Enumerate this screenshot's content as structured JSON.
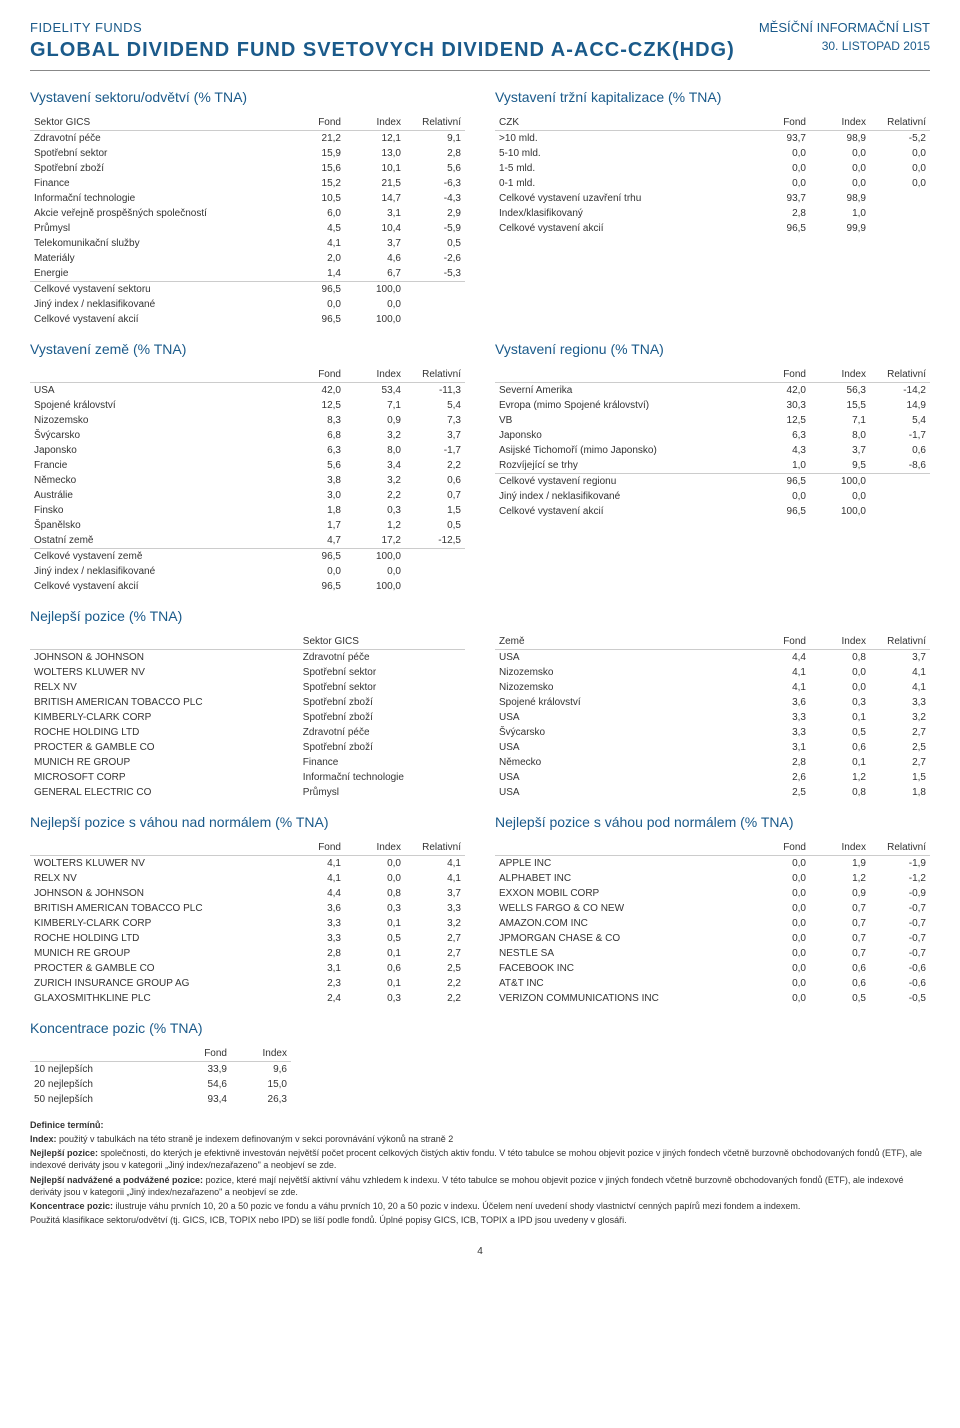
{
  "header": {
    "brand": "FIDELITY FUNDS",
    "title": "GLOBAL DIVIDEND FUND SVETOVYCH DIVIDEND A-ACC-CZK(HDG)",
    "doc_type": "MĚSÍČNÍ INFORMAČNÍ LIST",
    "doc_date": "30. LISTOPAD 2015"
  },
  "sector": {
    "title": "Vystavení sektoru/odvětví (% TNA)",
    "col_label": "Sektor GICS",
    "cols": [
      "Fond",
      "Index",
      "Relativní"
    ],
    "rows": [
      {
        "n": "Zdravotní péče",
        "f": "21,2",
        "i": "12,1",
        "r": "9,1"
      },
      {
        "n": "Spotřební sektor",
        "f": "15,9",
        "i": "13,0",
        "r": "2,8"
      },
      {
        "n": "Spotřební zboží",
        "f": "15,6",
        "i": "10,1",
        "r": "5,6"
      },
      {
        "n": "Finance",
        "f": "15,2",
        "i": "21,5",
        "r": "-6,3"
      },
      {
        "n": "Informační technologie",
        "f": "10,5",
        "i": "14,7",
        "r": "-4,3"
      },
      {
        "n": "Akcie veřejně prospěšných společností",
        "f": "6,0",
        "i": "3,1",
        "r": "2,9"
      },
      {
        "n": "Průmysl",
        "f": "4,5",
        "i": "10,4",
        "r": "-5,9"
      },
      {
        "n": "Telekomunikační služby",
        "f": "4,1",
        "i": "3,7",
        "r": "0,5"
      },
      {
        "n": "Materiály",
        "f": "2,0",
        "i": "4,6",
        "r": "-2,6"
      },
      {
        "n": "Energie",
        "f": "1,4",
        "i": "6,7",
        "r": "-5,3"
      }
    ],
    "totals": [
      {
        "n": "Celkové vystavení sektoru",
        "f": "96,5",
        "i": "100,0",
        "r": ""
      },
      {
        "n": "Jiný index / neklasifikované",
        "f": "0,0",
        "i": "0,0",
        "r": ""
      },
      {
        "n": "Celkové vystavení akcií",
        "f": "96,5",
        "i": "100,0",
        "r": ""
      }
    ]
  },
  "mcap": {
    "title": "Vystavení tržní kapitalizace (% TNA)",
    "col_label": "CZK",
    "cols": [
      "Fond",
      "Index",
      "Relativní"
    ],
    "rows": [
      {
        "n": ">10 mld.",
        "f": "93,7",
        "i": "98,9",
        "r": "-5,2"
      },
      {
        "n": "5-10 mld.",
        "f": "0,0",
        "i": "0,0",
        "r": "0,0"
      },
      {
        "n": "1-5 mld.",
        "f": "0,0",
        "i": "0,0",
        "r": "0,0"
      },
      {
        "n": "0-1 mld.",
        "f": "0,0",
        "i": "0,0",
        "r": "0,0"
      },
      {
        "n": "Celkové vystavení uzavření trhu",
        "f": "93,7",
        "i": "98,9",
        "r": ""
      },
      {
        "n": "Index/klasifikovaný",
        "f": "2,8",
        "i": "1,0",
        "r": ""
      },
      {
        "n": "Celkové vystavení akcií",
        "f": "96,5",
        "i": "99,9",
        "r": ""
      }
    ]
  },
  "country": {
    "title": "Vystavení země (% TNA)",
    "cols": [
      "Fond",
      "Index",
      "Relativní"
    ],
    "rows": [
      {
        "n": "USA",
        "f": "42,0",
        "i": "53,4",
        "r": "-11,3"
      },
      {
        "n": "Spojené království",
        "f": "12,5",
        "i": "7,1",
        "r": "5,4"
      },
      {
        "n": "Nizozemsko",
        "f": "8,3",
        "i": "0,9",
        "r": "7,3"
      },
      {
        "n": "Švýcarsko",
        "f": "6,8",
        "i": "3,2",
        "r": "3,7"
      },
      {
        "n": "Japonsko",
        "f": "6,3",
        "i": "8,0",
        "r": "-1,7"
      },
      {
        "n": "Francie",
        "f": "5,6",
        "i": "3,4",
        "r": "2,2"
      },
      {
        "n": "Německo",
        "f": "3,8",
        "i": "3,2",
        "r": "0,6"
      },
      {
        "n": "Austrálie",
        "f": "3,0",
        "i": "2,2",
        "r": "0,7"
      },
      {
        "n": "Finsko",
        "f": "1,8",
        "i": "0,3",
        "r": "1,5"
      },
      {
        "n": "Španělsko",
        "f": "1,7",
        "i": "1,2",
        "r": "0,5"
      },
      {
        "n": "Ostatní země",
        "f": "4,7",
        "i": "17,2",
        "r": "-12,5"
      }
    ],
    "totals": [
      {
        "n": "Celkové vystavení země",
        "f": "96,5",
        "i": "100,0",
        "r": ""
      },
      {
        "n": "Jiný index / neklasifikované",
        "f": "0,0",
        "i": "0,0",
        "r": ""
      },
      {
        "n": "Celkové vystavení akcií",
        "f": "96,5",
        "i": "100,0",
        "r": ""
      }
    ]
  },
  "region": {
    "title": "Vystavení regionu (% TNA)",
    "cols": [
      "Fond",
      "Index",
      "Relativní"
    ],
    "rows": [
      {
        "n": "Severní Amerika",
        "f": "42,0",
        "i": "56,3",
        "r": "-14,2"
      },
      {
        "n": "Evropa (mimo Spojené království)",
        "f": "30,3",
        "i": "15,5",
        "r": "14,9"
      },
      {
        "n": "VB",
        "f": "12,5",
        "i": "7,1",
        "r": "5,4"
      },
      {
        "n": "Japonsko",
        "f": "6,3",
        "i": "8,0",
        "r": "-1,7"
      },
      {
        "n": "Asijské Tichomoří (mimo Japonsko)",
        "f": "4,3",
        "i": "3,7",
        "r": "0,6"
      },
      {
        "n": "Rozvíjející se trhy",
        "f": "1,0",
        "i": "9,5",
        "r": "-8,6"
      }
    ],
    "totals": [
      {
        "n": "Celkové vystavení regionu",
        "f": "96,5",
        "i": "100,0",
        "r": ""
      },
      {
        "n": "Jiný index / neklasifikované",
        "f": "0,0",
        "i": "0,0",
        "r": ""
      },
      {
        "n": "Celkové vystavení akcií",
        "f": "96,5",
        "i": "100,0",
        "r": ""
      }
    ]
  },
  "top_positions": {
    "title": "Nejlepší pozice (% TNA)",
    "left_cols": [
      "",
      "Sektor GICS"
    ],
    "right_cols": [
      "Země",
      "Fond",
      "Index",
      "Relativní"
    ],
    "rows": [
      {
        "n": "JOHNSON & JOHNSON",
        "s": "Zdravotní péče",
        "c": "USA",
        "f": "4,4",
        "i": "0,8",
        "r": "3,7"
      },
      {
        "n": "WOLTERS KLUWER NV",
        "s": "Spotřební sektor",
        "c": "Nizozemsko",
        "f": "4,1",
        "i": "0,0",
        "r": "4,1"
      },
      {
        "n": "RELX NV",
        "s": "Spotřební sektor",
        "c": "Nizozemsko",
        "f": "4,1",
        "i": "0,0",
        "r": "4,1"
      },
      {
        "n": "BRITISH AMERICAN TOBACCO PLC",
        "s": "Spotřební zboží",
        "c": "Spojené království",
        "f": "3,6",
        "i": "0,3",
        "r": "3,3"
      },
      {
        "n": "KIMBERLY-CLARK CORP",
        "s": "Spotřební zboží",
        "c": "USA",
        "f": "3,3",
        "i": "0,1",
        "r": "3,2"
      },
      {
        "n": "ROCHE HOLDING LTD",
        "s": "Zdravotní péče",
        "c": "Švýcarsko",
        "f": "3,3",
        "i": "0,5",
        "r": "2,7"
      },
      {
        "n": "PROCTER & GAMBLE CO",
        "s": "Spotřební zboží",
        "c": "USA",
        "f": "3,1",
        "i": "0,6",
        "r": "2,5"
      },
      {
        "n": "MUNICH RE GROUP",
        "s": "Finance",
        "c": "Německo",
        "f": "2,8",
        "i": "0,1",
        "r": "2,7"
      },
      {
        "n": "MICROSOFT CORP",
        "s": "Informační technologie",
        "c": "USA",
        "f": "2,6",
        "i": "1,2",
        "r": "1,5"
      },
      {
        "n": "GENERAL ELECTRIC CO",
        "s": "Průmysl",
        "c": "USA",
        "f": "2,5",
        "i": "0,8",
        "r": "1,8"
      }
    ]
  },
  "overweight": {
    "title": "Nejlepší pozice s váhou nad normálem (% TNA)",
    "cols": [
      "Fond",
      "Index",
      "Relativní"
    ],
    "rows": [
      {
        "n": "WOLTERS KLUWER NV",
        "f": "4,1",
        "i": "0,0",
        "r": "4,1"
      },
      {
        "n": "RELX NV",
        "f": "4,1",
        "i": "0,0",
        "r": "4,1"
      },
      {
        "n": "JOHNSON & JOHNSON",
        "f": "4,4",
        "i": "0,8",
        "r": "3,7"
      },
      {
        "n": "BRITISH AMERICAN TOBACCO PLC",
        "f": "3,6",
        "i": "0,3",
        "r": "3,3"
      },
      {
        "n": "KIMBERLY-CLARK CORP",
        "f": "3,3",
        "i": "0,1",
        "r": "3,2"
      },
      {
        "n": "ROCHE HOLDING LTD",
        "f": "3,3",
        "i": "0,5",
        "r": "2,7"
      },
      {
        "n": "MUNICH RE GROUP",
        "f": "2,8",
        "i": "0,1",
        "r": "2,7"
      },
      {
        "n": "PROCTER & GAMBLE CO",
        "f": "3,1",
        "i": "0,6",
        "r": "2,5"
      },
      {
        "n": "ZURICH INSURANCE GROUP AG",
        "f": "2,3",
        "i": "0,1",
        "r": "2,2"
      },
      {
        "n": "GLAXOSMITHKLINE PLC",
        "f": "2,4",
        "i": "0,3",
        "r": "2,2"
      }
    ]
  },
  "underweight": {
    "title": "Nejlepší pozice s váhou pod normálem (% TNA)",
    "cols": [
      "Fond",
      "Index",
      "Relativní"
    ],
    "rows": [
      {
        "n": "APPLE INC",
        "f": "0,0",
        "i": "1,9",
        "r": "-1,9"
      },
      {
        "n": "ALPHABET INC",
        "f": "0,0",
        "i": "1,2",
        "r": "-1,2"
      },
      {
        "n": "EXXON MOBIL CORP",
        "f": "0,0",
        "i": "0,9",
        "r": "-0,9"
      },
      {
        "n": "WELLS FARGO & CO NEW",
        "f": "0,0",
        "i": "0,7",
        "r": "-0,7"
      },
      {
        "n": "AMAZON.COM INC",
        "f": "0,0",
        "i": "0,7",
        "r": "-0,7"
      },
      {
        "n": "JPMORGAN CHASE & CO",
        "f": "0,0",
        "i": "0,7",
        "r": "-0,7"
      },
      {
        "n": "NESTLE SA",
        "f": "0,0",
        "i": "0,7",
        "r": "-0,7"
      },
      {
        "n": "FACEBOOK INC",
        "f": "0,0",
        "i": "0,6",
        "r": "-0,6"
      },
      {
        "n": "AT&T INC",
        "f": "0,0",
        "i": "0,6",
        "r": "-0,6"
      },
      {
        "n": "VERIZON COMMUNICATIONS INC",
        "f": "0,0",
        "i": "0,5",
        "r": "-0,5"
      }
    ]
  },
  "concentration": {
    "title": "Koncentrace pozic (% TNA)",
    "cols": [
      "Fond",
      "Index"
    ],
    "rows": [
      {
        "n": "10 nejlepších",
        "f": "33,9",
        "i": "9,6"
      },
      {
        "n": "20 nejlepších",
        "f": "54,6",
        "i": "15,0"
      },
      {
        "n": "50 nejlepších",
        "f": "93,4",
        "i": "26,3"
      }
    ]
  },
  "footnotes": {
    "heading": "Definice termínů:",
    "lines": [
      "Index: použitý v tabulkách na této straně je indexem definovaným v sekci porovnávání výkonů na straně 2",
      "Nejlepší pozice: společnosti, do kterých je efektivně investován největší počet procent celkových čistých aktiv fondu. V této tabulce se mohou objevit pozice v jiných fondech včetně burzovně obchodovaných fondů (ETF), ale indexové deriváty jsou v kategorii „Jiný index/nezařazeno\" a neobjeví se zde.",
      "Nejlepší nadvážené a podvážené pozice: pozice, které mají největší aktivní váhu vzhledem k indexu. V této tabulce se mohou objevit pozice v jiných fondech včetně burzovně obchodovaných fondů (ETF), ale indexové deriváty jsou v kategorii „Jiný index/nezařazeno\" a neobjeví se zde.",
      "Koncentrace pozic: ilustruje váhu prvních 10, 20 a 50 pozic ve fondu a váhu prvních 10, 20 a 50 pozic v indexu. Účelem není uvedení shody vlastnictví cenných papírů mezi fondem a indexem.",
      "Použitá klasifikace sektoru/odvětví (tj. GICS, ICB, TOPIX nebo IPD) se liší podle fondů. Úplné popisy GICS, ICB, TOPIX a IPD jsou uvedeny v glosáři."
    ]
  },
  "page_num": "4"
}
